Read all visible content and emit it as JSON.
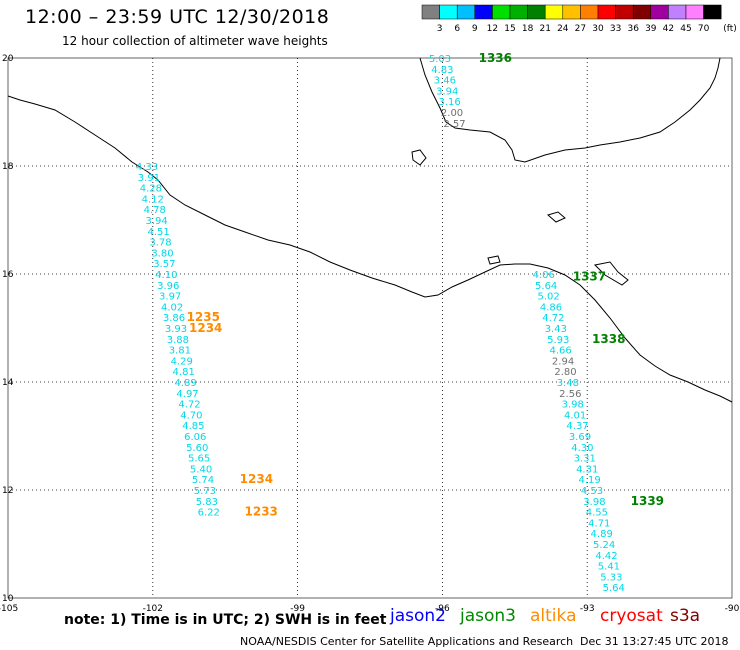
{
  "header": {
    "title": "12:00 – 23:59 UTC 12/30/2018",
    "subtitle": "12 hour collection of altimeter wave heights"
  },
  "legend": {
    "unit": "(ft)",
    "bins": [
      {
        "label": "3",
        "color": "#808080"
      },
      {
        "label": "6",
        "color": "#00ffff"
      },
      {
        "label": "9",
        "color": "#00c0ff"
      },
      {
        "label": "12",
        "color": "#0000ff"
      },
      {
        "label": "15",
        "color": "#00e000"
      },
      {
        "label": "18",
        "color": "#00b000"
      },
      {
        "label": "21",
        "color": "#008000"
      },
      {
        "label": "24",
        "color": "#ffff00"
      },
      {
        "label": "27",
        "color": "#ffc000"
      },
      {
        "label": "30",
        "color": "#ff8000"
      },
      {
        "label": "33",
        "color": "#ff0000"
      },
      {
        "label": "36",
        "color": "#c00000"
      },
      {
        "label": "39",
        "color": "#800000"
      },
      {
        "label": "42",
        "color": "#a000a0"
      },
      {
        "label": "45",
        "color": "#c080ff"
      },
      {
        "label": "70",
        "color": "#ff80ff"
      },
      {
        "label": "",
        "color": "#000000"
      }
    ]
  },
  "axes": {
    "lon_labels": [
      "-105",
      "-102",
      "-99",
      "-96",
      "-93",
      "-90"
    ],
    "lat_labels": [
      "20",
      "18",
      "16",
      "14",
      "12",
      "10"
    ],
    "lon_range": [
      -105,
      -90
    ],
    "lat_range": [
      10,
      20
    ]
  },
  "colors": {
    "cyan": "#00d8e8",
    "gray": "#707070",
    "green": "#008000",
    "orange": "#ff8c00",
    "jason2": "#0000ff",
    "jason3": "#008800",
    "altika": "#ff8c00",
    "cryosat": "#ff0000",
    "s3a": "#800000"
  },
  "tracks": [
    {
      "satellite": "altika",
      "points": [
        {
          "lat": 18.0,
          "lon": -102.12,
          "v": "4.33"
        },
        {
          "lat": 17.8,
          "lon": -102.08,
          "v": "3.91"
        },
        {
          "lat": 17.6,
          "lon": -102.04,
          "v": "4.28"
        },
        {
          "lat": 17.4,
          "lon": -102.0,
          "v": "4.12"
        },
        {
          "lat": 17.2,
          "lon": -101.96,
          "v": "4.78"
        },
        {
          "lat": 17.0,
          "lon": -101.92,
          "v": "3.94"
        },
        {
          "lat": 16.8,
          "lon": -101.88,
          "v": "4.51"
        },
        {
          "lat": 16.6,
          "lon": -101.84,
          "v": "3.78"
        },
        {
          "lat": 16.4,
          "lon": -101.8,
          "v": "3.80"
        },
        {
          "lat": 16.2,
          "lon": -101.76,
          "v": "3.57"
        },
        {
          "lat": 16.0,
          "lon": -101.72,
          "v": "4.10"
        },
        {
          "lat": 15.8,
          "lon": -101.68,
          "v": "3.96"
        },
        {
          "lat": 15.6,
          "lon": -101.64,
          "v": "3.97"
        },
        {
          "lat": 15.4,
          "lon": -101.6,
          "v": "4.02"
        },
        {
          "lat": 15.2,
          "lon": -101.56,
          "v": "3.86"
        },
        {
          "lat": 15.0,
          "lon": -101.52,
          "v": "3.93"
        },
        {
          "lat": 14.8,
          "lon": -101.48,
          "v": "3.88"
        },
        {
          "lat": 14.6,
          "lon": -101.44,
          "v": "3.81"
        },
        {
          "lat": 14.4,
          "lon": -101.4,
          "v": "4.29"
        },
        {
          "lat": 14.2,
          "lon": -101.36,
          "v": "4.81"
        },
        {
          "lat": 14.0,
          "lon": -101.32,
          "v": "4.89"
        },
        {
          "lat": 13.8,
          "lon": -101.28,
          "v": "4.97"
        },
        {
          "lat": 13.6,
          "lon": -101.24,
          "v": "4.72"
        },
        {
          "lat": 13.4,
          "lon": -101.2,
          "v": "4.70"
        },
        {
          "lat": 13.2,
          "lon": -101.16,
          "v": "4.85"
        },
        {
          "lat": 13.0,
          "lon": -101.12,
          "v": "6.06"
        },
        {
          "lat": 12.8,
          "lon": -101.08,
          "v": "5.60"
        },
        {
          "lat": 12.6,
          "lon": -101.04,
          "v": "5.65"
        },
        {
          "lat": 12.4,
          "lon": -101.0,
          "v": "5.40"
        },
        {
          "lat": 12.2,
          "lon": -100.96,
          "v": "5.74"
        },
        {
          "lat": 12.0,
          "lon": -100.92,
          "v": "5.73"
        },
        {
          "lat": 11.8,
          "lon": -100.88,
          "v": "5.83"
        },
        {
          "lat": 11.6,
          "lon": -100.84,
          "v": "6.22"
        }
      ],
      "times": [
        {
          "lat": 15.2,
          "lon": -101.3,
          "t": "1235"
        },
        {
          "lat": 15.0,
          "lon": -101.25,
          "t": "1234"
        },
        {
          "lat": 12.2,
          "lon": -100.2,
          "t": "1234"
        },
        {
          "lat": 11.6,
          "lon": -100.1,
          "t": "1233"
        }
      ]
    },
    {
      "satellite": "jason3",
      "points": [
        {
          "lat": 20.0,
          "lon": -96.05,
          "v": "5.03"
        },
        {
          "lat": 19.8,
          "lon": -96.0,
          "v": "4.83"
        },
        {
          "lat": 19.6,
          "lon": -95.95,
          "v": "3.46"
        },
        {
          "lat": 19.4,
          "lon": -95.9,
          "v": "3.94"
        },
        {
          "lat": 19.2,
          "lon": -95.85,
          "v": "3.16"
        },
        {
          "lat": 19.0,
          "lon": -95.8,
          "v": "2.00",
          "gray": true
        },
        {
          "lat": 18.8,
          "lon": -95.75,
          "v": "2.57",
          "gray": true
        },
        {
          "lat": 16.0,
          "lon": -93.9,
          "v": "4.06"
        },
        {
          "lat": 15.8,
          "lon": -93.85,
          "v": "5.64"
        },
        {
          "lat": 15.6,
          "lon": -93.8,
          "v": "5.02"
        },
        {
          "lat": 15.4,
          "lon": -93.75,
          "v": "4.86"
        },
        {
          "lat": 15.2,
          "lon": -93.7,
          "v": "4.72"
        },
        {
          "lat": 15.0,
          "lon": -93.65,
          "v": "3.43"
        },
        {
          "lat": 14.8,
          "lon": -93.6,
          "v": "5.93"
        },
        {
          "lat": 14.6,
          "lon": -93.55,
          "v": "4.66"
        },
        {
          "lat": 14.4,
          "lon": -93.5,
          "v": "2.94",
          "gray": true
        },
        {
          "lat": 14.2,
          "lon": -93.45,
          "v": "2.80",
          "gray": true
        },
        {
          "lat": 14.0,
          "lon": -93.4,
          "v": "3.48"
        },
        {
          "lat": 13.8,
          "lon": -93.35,
          "v": "2.56",
          "gray": true
        },
        {
          "lat": 13.6,
          "lon": -93.3,
          "v": "3.98"
        },
        {
          "lat": 13.4,
          "lon": -93.25,
          "v": "4.01"
        },
        {
          "lat": 13.2,
          "lon": -93.2,
          "v": "4.37"
        },
        {
          "lat": 13.0,
          "lon": -93.15,
          "v": "3.69"
        },
        {
          "lat": 12.8,
          "lon": -93.1,
          "v": "4.30"
        },
        {
          "lat": 12.6,
          "lon": -93.05,
          "v": "3.31"
        },
        {
          "lat": 12.4,
          "lon": -93.0,
          "v": "4.31"
        },
        {
          "lat": 12.2,
          "lon": -92.95,
          "v": "4.19"
        },
        {
          "lat": 12.0,
          "lon": -92.9,
          "v": "4.53"
        },
        {
          "lat": 11.8,
          "lon": -92.85,
          "v": "3.98"
        },
        {
          "lat": 11.6,
          "lon": -92.8,
          "v": "4.55"
        },
        {
          "lat": 11.4,
          "lon": -92.75,
          "v": "4.71"
        },
        {
          "lat": 11.2,
          "lon": -92.7,
          "v": "4.89"
        },
        {
          "lat": 11.0,
          "lon": -92.65,
          "v": "5.24"
        },
        {
          "lat": 10.8,
          "lon": -92.6,
          "v": "4.42"
        },
        {
          "lat": 10.6,
          "lon": -92.55,
          "v": "5.41"
        },
        {
          "lat": 10.4,
          "lon": -92.5,
          "v": "5.33"
        },
        {
          "lat": 10.2,
          "lon": -92.45,
          "v": "5.64"
        }
      ],
      "times": [
        {
          "lat": 20.0,
          "lon": -95.25,
          "t": "1336"
        },
        {
          "lat": 15.95,
          "lon": -93.3,
          "t": "1337"
        },
        {
          "lat": 14.8,
          "lon": -92.9,
          "t": "1338"
        },
        {
          "lat": 11.8,
          "lon": -92.1,
          "t": "1339"
        }
      ]
    }
  ],
  "footer": {
    "note": "note: 1) Time is in UTC; 2) SWH is in feet",
    "satellites": [
      {
        "name": "jason2",
        "key": "jason2"
      },
      {
        "name": "jason3",
        "key": "jason3"
      },
      {
        "name": "altika",
        "key": "altika"
      },
      {
        "name": "cryosat",
        "key": "cryosat"
      },
      {
        "name": "s3a",
        "key": "s3a"
      }
    ],
    "credit": "NOAA/NESDIS Center for Satellite Applications and Research",
    "timestamp": "Dec 31 13:27:45 UTC 2018"
  }
}
